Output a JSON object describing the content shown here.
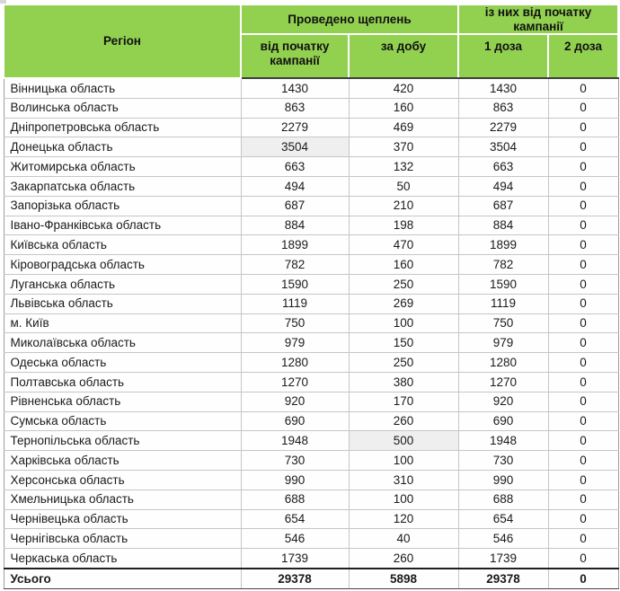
{
  "table": {
    "headers": {
      "region": "Регіон",
      "group_vaccinations": "Проведено щеплень",
      "group_since_start": "із них від початку кампанії",
      "since_start": "від початку кампанії",
      "per_day": "за добу",
      "dose1": "1 доза",
      "dose2": "2 доза"
    },
    "colors": {
      "header_green": "#92d050",
      "highlight_gray": "#efefef",
      "grid_line": "#c6c6c6"
    },
    "rows": [
      {
        "region": "Вінницька область",
        "total": "1430",
        "day": "420",
        "dose1": "1430",
        "dose2": "0"
      },
      {
        "region": "Волинська область",
        "total": "863",
        "day": "160",
        "dose1": "863",
        "dose2": "0"
      },
      {
        "region": "Дніпропетровська область",
        "total": "2279",
        "day": "469",
        "dose1": "2279",
        "dose2": "0"
      },
      {
        "region": "Донецька область",
        "total": "3504",
        "day": "370",
        "dose1": "3504",
        "dose2": "0",
        "hl": "total"
      },
      {
        "region": "Житомирська область",
        "total": "663",
        "day": "132",
        "dose1": "663",
        "dose2": "0"
      },
      {
        "region": "Закарпатська область",
        "total": "494",
        "day": "50",
        "dose1": "494",
        "dose2": "0"
      },
      {
        "region": "Запорізька область",
        "total": "687",
        "day": "210",
        "dose1": "687",
        "dose2": "0"
      },
      {
        "region": "Івано-Франківська область",
        "total": "884",
        "day": "198",
        "dose1": "884",
        "dose2": "0"
      },
      {
        "region": "Київська область",
        "total": "1899",
        "day": "470",
        "dose1": "1899",
        "dose2": "0"
      },
      {
        "region": "Кіровоградська область",
        "total": "782",
        "day": "160",
        "dose1": "782",
        "dose2": "0"
      },
      {
        "region": "Луганська область",
        "total": "1590",
        "day": "250",
        "dose1": "1590",
        "dose2": "0"
      },
      {
        "region": "Львівська область",
        "total": "1119",
        "day": "269",
        "dose1": "1119",
        "dose2": "0"
      },
      {
        "region": "м. Київ",
        "total": "750",
        "day": "100",
        "dose1": "750",
        "dose2": "0"
      },
      {
        "region": "Миколаївська область",
        "total": "979",
        "day": "150",
        "dose1": "979",
        "dose2": "0"
      },
      {
        "region": "Одеська область",
        "total": "1280",
        "day": "250",
        "dose1": "1280",
        "dose2": "0"
      },
      {
        "region": "Полтавська область",
        "total": "1270",
        "day": "380",
        "dose1": "1270",
        "dose2": "0"
      },
      {
        "region": "Рівненська область",
        "total": "920",
        "day": "170",
        "dose1": "920",
        "dose2": "0"
      },
      {
        "region": "Сумська область",
        "total": "690",
        "day": "260",
        "dose1": "690",
        "dose2": "0"
      },
      {
        "region": "Тернопільська область",
        "total": "1948",
        "day": "500",
        "dose1": "1948",
        "dose2": "0",
        "hl": "day"
      },
      {
        "region": "Харківська область",
        "total": "730",
        "day": "100",
        "dose1": "730",
        "dose2": "0"
      },
      {
        "region": "Херсонська область",
        "total": "990",
        "day": "310",
        "dose1": "990",
        "dose2": "0"
      },
      {
        "region": "Хмельницька область",
        "total": "688",
        "day": "100",
        "dose1": "688",
        "dose2": "0"
      },
      {
        "region": "Чернівецька область",
        "total": "654",
        "day": "120",
        "dose1": "654",
        "dose2": "0"
      },
      {
        "region": "Чернігівська область",
        "total": "546",
        "day": "40",
        "dose1": "546",
        "dose2": "0"
      },
      {
        "region": "Черкаська область",
        "total": "1739",
        "day": "260",
        "dose1": "1739",
        "dose2": "0"
      }
    ],
    "total": {
      "region": "Усього",
      "total": "29378",
      "day": "5898",
      "dose1": "29378",
      "dose2": "0"
    }
  }
}
